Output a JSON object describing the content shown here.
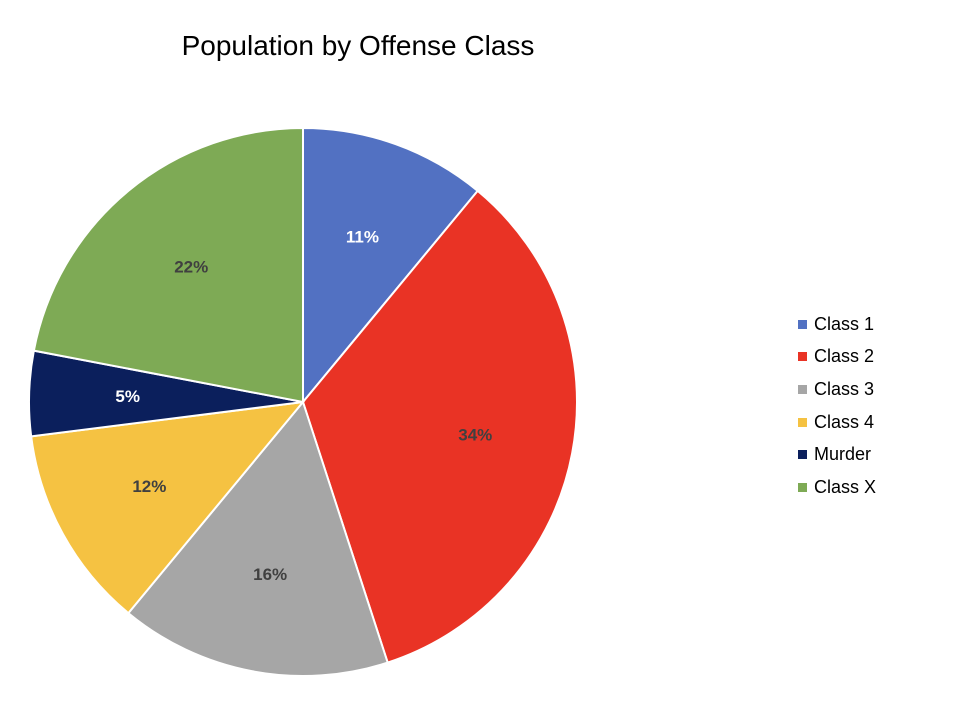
{
  "chart_data": {
    "type": "pie",
    "title": "Population by Offense Class",
    "categories": [
      "Class 1",
      "Class 2",
      "Class 3",
      "Class 4",
      "Murder",
      "Class X"
    ],
    "values": [
      11,
      34,
      16,
      12,
      5,
      22
    ],
    "data_labels": [
      "11%",
      "34%",
      "16%",
      "12%",
      "5%",
      "22%"
    ],
    "colors": [
      "#5271c2",
      "#e93325",
      "#a6a6a6",
      "#f5c242",
      "#0b1f5c",
      "#7eaa55"
    ],
    "label_colors": [
      "#ffffff",
      "#404040",
      "#404040",
      "#404040",
      "#ffffff",
      "#404040"
    ],
    "legend_position": "right"
  }
}
